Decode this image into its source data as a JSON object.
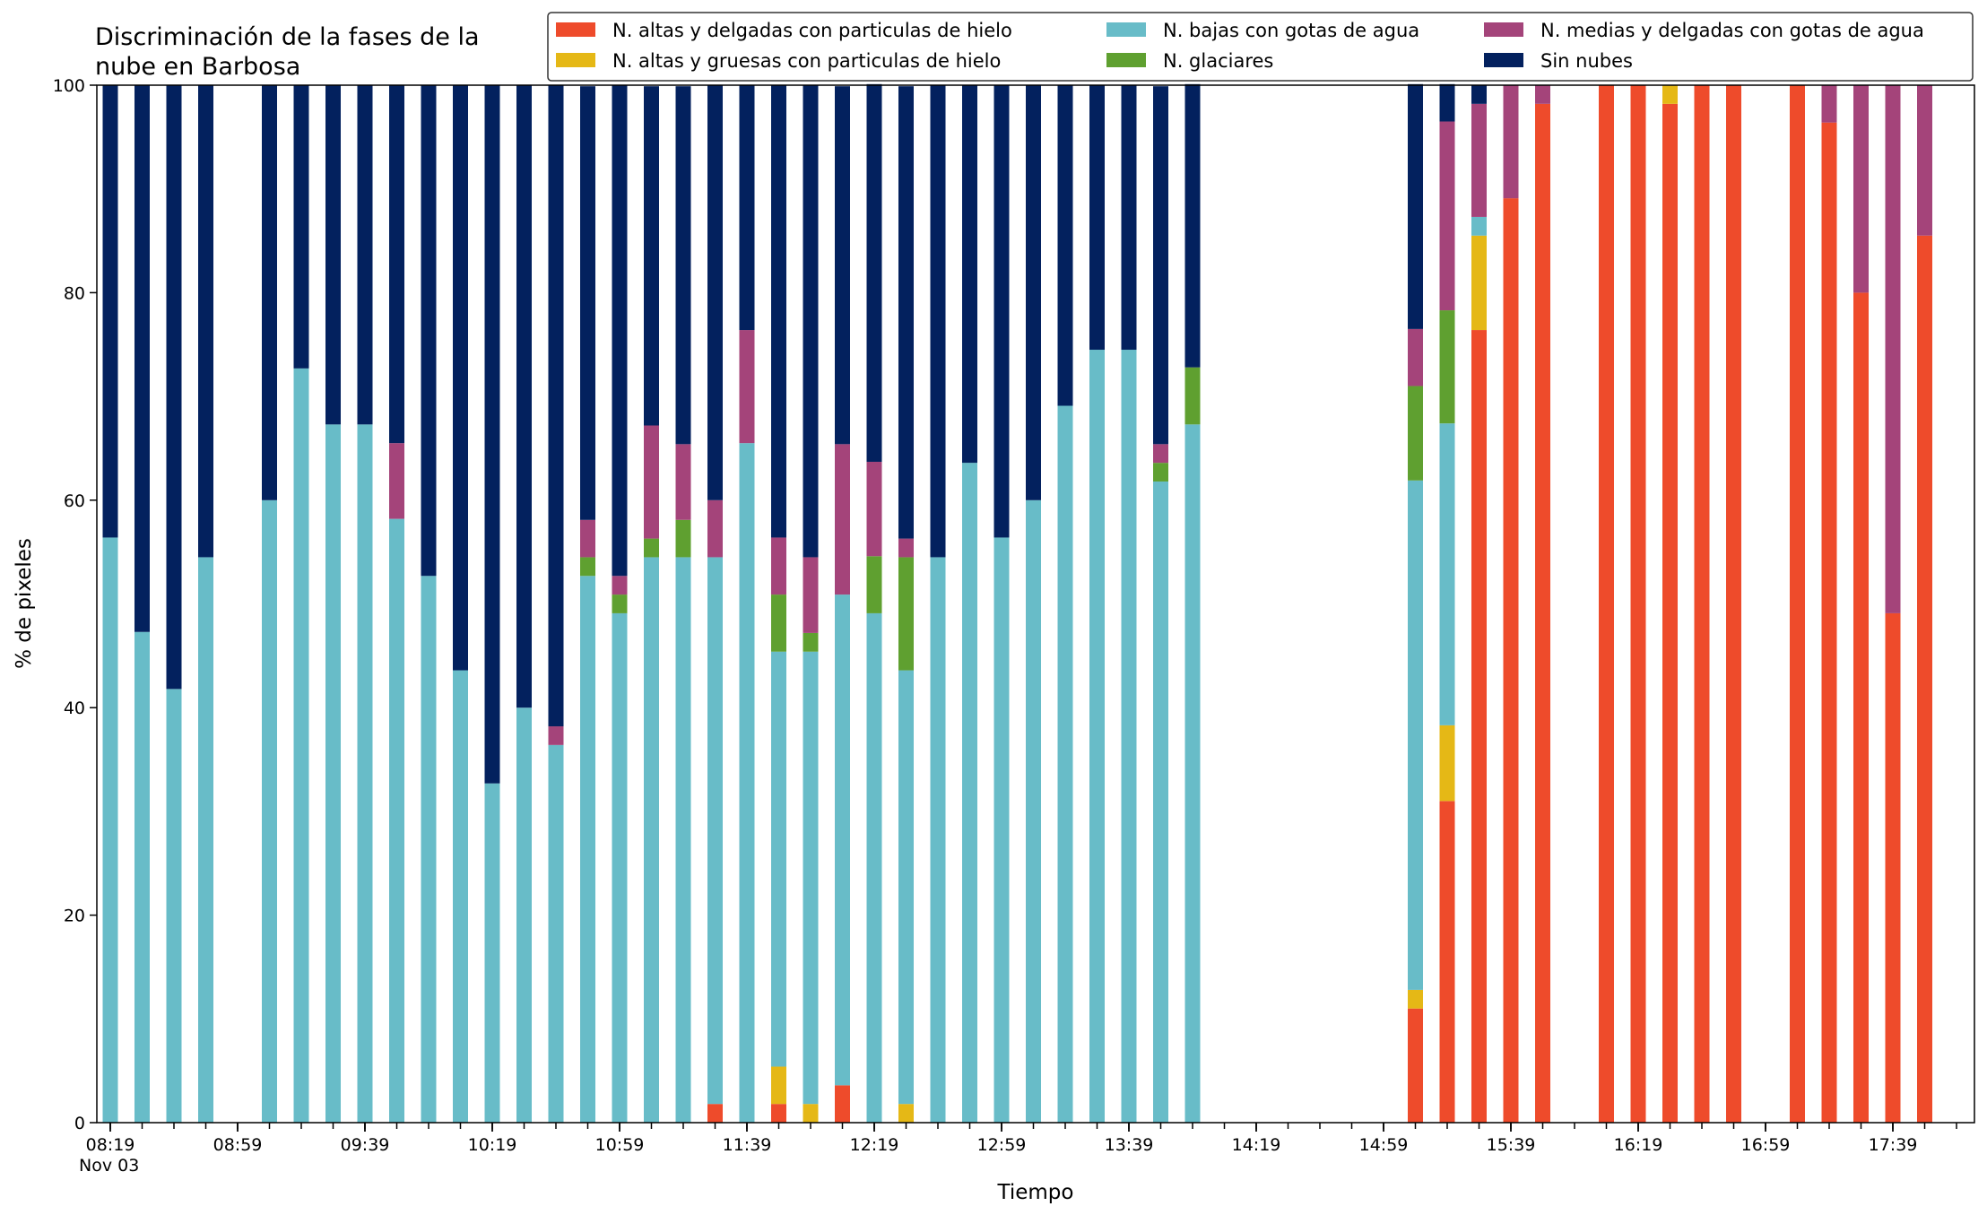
{
  "chart_data": {
    "type": "bar",
    "stacked": true,
    "title_lines": [
      "Discriminación de la fases de la",
      "nube en Barbosa"
    ],
    "xlabel": "Tiempo",
    "ylabel": "% de pixeles",
    "ylim": [
      0,
      100
    ],
    "yticks": [
      0,
      20,
      40,
      60,
      80,
      100
    ],
    "x_start": "08:19",
    "x_step_minutes": 10,
    "x_count": 59,
    "x_date_label": "Nov 03",
    "xtick_labels": [
      "08:19",
      "08:59",
      "09:39",
      "10:19",
      "10:59",
      "11:39",
      "12:19",
      "12:59",
      "13:39",
      "14:19",
      "14:59",
      "15:39",
      "16:19",
      "16:59",
      "17:39"
    ],
    "xtick_label_start": "08:19",
    "xtick_label_step_minutes": 40,
    "legend_position": "top-right",
    "legend_columns": 3,
    "legend_order": [
      "alta_delgada",
      "alta_gruesa",
      "baja_agua",
      "glaciares",
      "media_agua",
      "sin_nubes"
    ],
    "series": [
      {
        "key": "alta_delgada",
        "name": "N. altas y delgadas con particulas de hielo",
        "color": "#EE4B2B",
        "values": [
          0,
          0,
          0,
          0,
          0,
          0,
          0,
          0,
          0,
          0,
          0,
          0,
          0,
          0,
          0,
          0,
          0,
          0,
          0,
          1.8,
          0,
          1.8,
          0,
          3.6,
          0,
          0,
          0,
          0,
          0,
          0,
          0,
          0,
          0,
          0,
          0,
          0,
          0,
          0,
          0,
          0,
          0,
          11,
          31,
          76.4,
          89.1,
          98.2,
          0,
          100,
          100,
          98.2,
          100,
          100,
          0,
          100,
          96.4,
          80,
          49.1,
          85.5,
          0
        ]
      },
      {
        "key": "alta_gruesa",
        "name": "N. altas y gruesas con particulas de hielo",
        "color": "#E5B816",
        "values": [
          0,
          0,
          0,
          0,
          0,
          0,
          0,
          0,
          0,
          0,
          0,
          0,
          0,
          0,
          0,
          0,
          0,
          0,
          0,
          0,
          0,
          3.6,
          1.8,
          0,
          0,
          1.8,
          0,
          0,
          0,
          0,
          0,
          0,
          0,
          0,
          0,
          0,
          0,
          0,
          0,
          0,
          0,
          1.8,
          7.3,
          9.1,
          0,
          0,
          0,
          0,
          0,
          1.8,
          0,
          0,
          0,
          0,
          0,
          0,
          0,
          0,
          0
        ]
      },
      {
        "key": "baja_agua",
        "name": "N. bajas con gotas de agua",
        "color": "#68BCC8",
        "values": [
          56.4,
          47.3,
          41.8,
          54.5,
          0,
          60,
          72.7,
          67.3,
          67.3,
          58.2,
          52.7,
          43.6,
          32.7,
          40,
          36.4,
          52.7,
          49.1,
          54.5,
          54.5,
          52.7,
          65.5,
          40,
          43.6,
          47.3,
          49.1,
          41.8,
          54.5,
          63.6,
          56.4,
          60,
          69.1,
          74.5,
          74.5,
          61.8,
          67.3,
          0,
          0,
          0,
          0,
          0,
          0,
          49.1,
          29.1,
          1.8,
          0,
          0,
          0,
          0,
          0,
          0,
          0,
          0,
          0,
          0,
          0,
          0,
          0,
          0,
          0
        ]
      },
      {
        "key": "glaciares",
        "name": "N. glaciares",
        "color": "#5FA030",
        "values": [
          0,
          0,
          0,
          0,
          0,
          0,
          0,
          0,
          0,
          0,
          0,
          0,
          0,
          0,
          0,
          1.8,
          1.8,
          1.8,
          3.6,
          0,
          0,
          5.5,
          1.8,
          0,
          5.5,
          10.9,
          0,
          0,
          0,
          0,
          0,
          0,
          0,
          1.8,
          5.5,
          0,
          0,
          0,
          0,
          0,
          0,
          9.1,
          10.9,
          0,
          0,
          0,
          0,
          0,
          0,
          0,
          0,
          0,
          0,
          0,
          0,
          0,
          0,
          0,
          0
        ]
      },
      {
        "key": "media_agua",
        "name": "N. medias y delgadas con gotas de agua",
        "color": "#A4447A",
        "values": [
          0,
          0,
          0,
          0,
          0,
          0,
          0,
          0,
          0,
          7.3,
          0,
          0,
          0,
          0,
          1.8,
          3.6,
          1.8,
          10.9,
          7.3,
          5.5,
          10.9,
          5.5,
          7.3,
          14.5,
          9.1,
          1.8,
          0,
          0,
          0,
          0,
          0,
          0,
          0,
          1.8,
          0,
          0,
          0,
          0,
          0,
          0,
          0,
          5.5,
          18.2,
          10.9,
          10.9,
          1.8,
          0,
          0,
          0,
          0,
          0,
          0,
          0,
          0,
          3.6,
          20,
          50.9,
          14.5,
          0
        ]
      },
      {
        "key": "sin_nubes",
        "name": "Sin nubes",
        "color": "#03215E",
        "values": [
          43.6,
          52.7,
          58.2,
          45.5,
          0,
          40,
          27.3,
          32.7,
          32.7,
          34.5,
          47.3,
          56.4,
          67.3,
          60,
          61.8,
          41.8,
          47.3,
          32.7,
          34.5,
          40,
          23.6,
          43.6,
          45.5,
          34.5,
          36.4,
          43.6,
          45.5,
          36.4,
          43.6,
          40,
          30.9,
          25.5,
          25.5,
          34.5,
          27.3,
          0,
          0,
          0,
          0,
          0,
          0,
          23.6,
          3.6,
          1.8,
          0,
          0,
          0,
          0,
          0,
          0,
          0,
          0,
          0,
          0,
          0,
          0,
          0,
          0,
          0
        ]
      }
    ]
  }
}
